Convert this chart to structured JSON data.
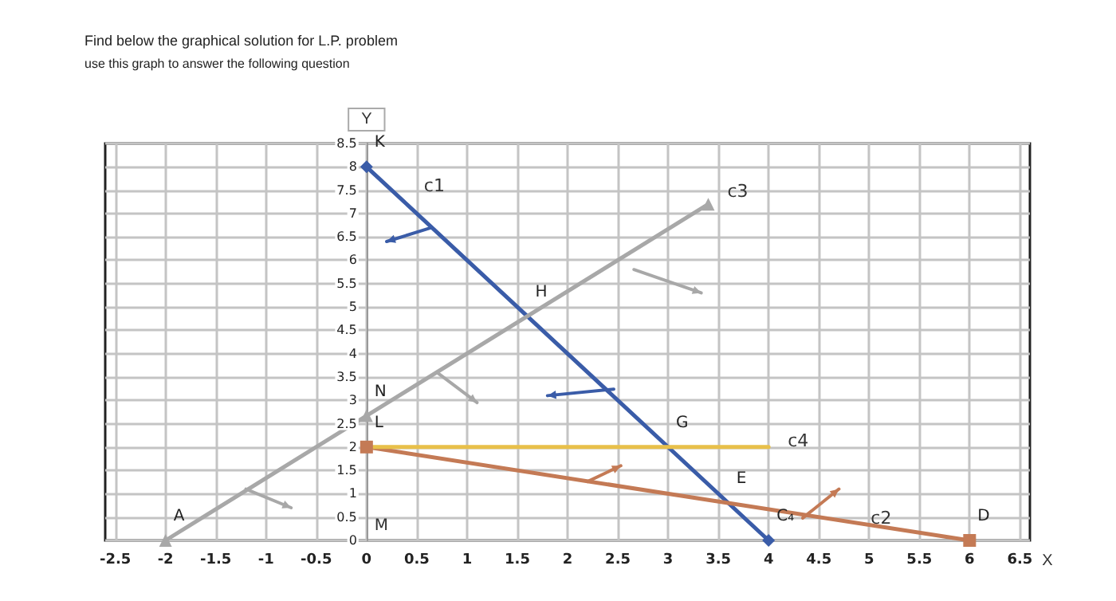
{
  "chart_data": {
    "type": "line",
    "title": "Find below the graphical solution for L.P. problem",
    "subtitle": "use this graph to answer the following question",
    "xlabel": "X",
    "ylabel": "Y",
    "xlim": [
      -2.6,
      6.6
    ],
    "xticks": [
      -2.5,
      -2,
      -1.5,
      -1,
      -0.5,
      0,
      0.5,
      1,
      1.5,
      2,
      2.5,
      3,
      3.5,
      4,
      4.5,
      5,
      5.5,
      6,
      6.5
    ],
    "ylim": [
      0,
      8.5
    ],
    "yticks": [
      0,
      0.5,
      1,
      1.5,
      2,
      2.5,
      3,
      3.5,
      4,
      4.5,
      5,
      5.5,
      6,
      6.5,
      7,
      7.5,
      8,
      8.5
    ],
    "grid": true,
    "legend": false,
    "series": [
      {
        "name": "c1",
        "color": "#3a5ca8",
        "x": [
          4,
          0
        ],
        "values": [
          0,
          8
        ],
        "marker": "diamond"
      },
      {
        "name": "c2",
        "color": "#c47a55",
        "x": [
          0,
          6
        ],
        "values": [
          2,
          0
        ],
        "marker": "square"
      },
      {
        "name": "c3",
        "color": "#a8a8a8",
        "x": [
          -2,
          0,
          3.4
        ],
        "values": [
          0,
          2.67,
          7.2
        ],
        "marker": "triangle"
      },
      {
        "name": "c4",
        "color": "#e8c04a",
        "x": [
          0,
          4
        ],
        "values": [
          2,
          2
        ],
        "marker": "none"
      }
    ],
    "annotations": [
      {
        "text": "K",
        "x": 0,
        "y": 8
      },
      {
        "text": "N",
        "x": 0,
        "y": 2.67
      },
      {
        "text": "L",
        "x": 0,
        "y": 2
      },
      "M",
      {
        "text": "A",
        "x": -2,
        "y": 0
      },
      {
        "text": "H",
        "x": 1.6,
        "y": 4.8
      },
      {
        "text": "G",
        "x": 3,
        "y": 2
      },
      {
        "text": "E",
        "x": 3.6,
        "y": 0.8
      },
      {
        "text": "C₄",
        "x": 4,
        "y": 0
      },
      {
        "text": "D",
        "x": 6,
        "y": 0
      }
    ]
  }
}
